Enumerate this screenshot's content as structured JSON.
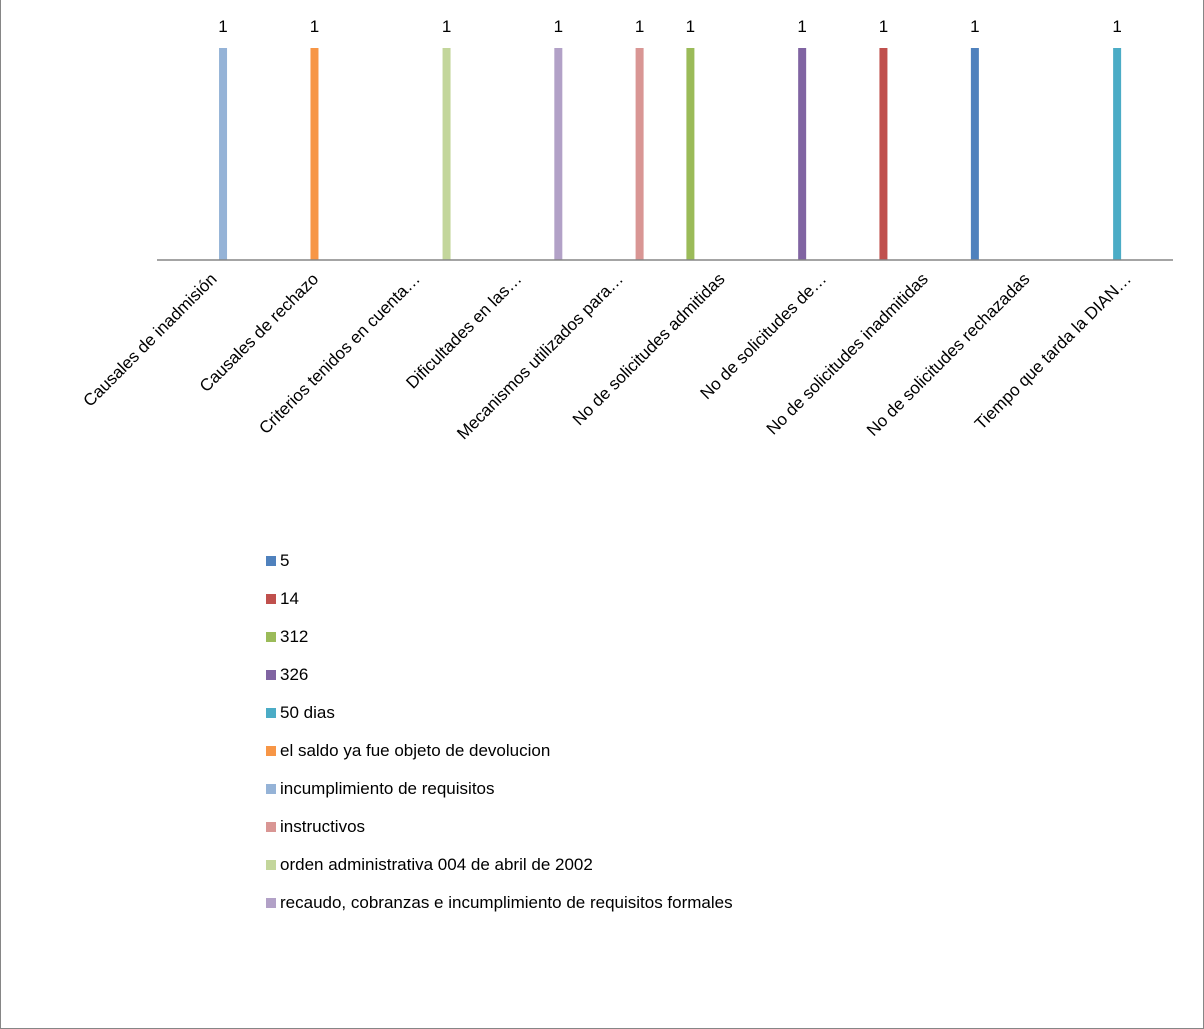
{
  "chart_data": {
    "type": "bar",
    "title": "",
    "xlabel": "",
    "ylabel": "",
    "ylim": [
      0,
      1
    ],
    "grid": false,
    "legend_position": "bottom",
    "categories": [
      "Causales de inadmisión",
      "Causales de rechazo",
      "Criterios tenidos en cuenta…",
      "Dificultades en las…",
      "Mecanismos utilizados para…",
      "No de solicitudes admitidas",
      "No de solicitudes de…",
      "No de solicitudes inadmitidas",
      "No de solicitudes rechazadas",
      "Tiempo que tarda la DIAN…"
    ],
    "series": [
      {
        "name": "5",
        "color": "#4f81bd",
        "values": [
          null,
          null,
          null,
          null,
          null,
          null,
          null,
          null,
          1,
          null
        ]
      },
      {
        "name": "14",
        "color": "#c0504d",
        "values": [
          null,
          null,
          null,
          null,
          null,
          null,
          null,
          1,
          null,
          null
        ]
      },
      {
        "name": "312",
        "color": "#9bbb59",
        "values": [
          null,
          null,
          null,
          null,
          null,
          1,
          null,
          null,
          null,
          null
        ]
      },
      {
        "name": "326",
        "color": "#8064a2",
        "values": [
          null,
          null,
          null,
          null,
          null,
          null,
          1,
          null,
          null,
          null
        ]
      },
      {
        "name": "50 dias",
        "color": "#4bacc6",
        "values": [
          null,
          null,
          null,
          null,
          null,
          null,
          null,
          null,
          null,
          1
        ]
      },
      {
        "name": "el saldo ya fue objeto de devolucion",
        "color": "#f79646",
        "values": [
          null,
          1,
          null,
          null,
          null,
          null,
          null,
          null,
          null,
          null
        ]
      },
      {
        "name": "incumplimiento de requisitos",
        "color": "#95b3d7",
        "values": [
          1,
          null,
          null,
          null,
          null,
          null,
          null,
          null,
          null,
          null
        ]
      },
      {
        "name": "instructivos",
        "color": "#d99694",
        "values": [
          null,
          null,
          null,
          null,
          1,
          null,
          null,
          null,
          null,
          null
        ]
      },
      {
        "name": "orden administrativa 004 de abril de 2002",
        "color": "#c3d69b",
        "values": [
          null,
          null,
          1,
          null,
          null,
          null,
          null,
          null,
          null,
          null
        ]
      },
      {
        "name": "recaudo, cobranzas e incumplimiento de requisitos formales",
        "color": "#b2a1c7",
        "values": [
          null,
          null,
          null,
          1,
          null,
          null,
          null,
          null,
          null,
          null
        ]
      }
    ]
  }
}
